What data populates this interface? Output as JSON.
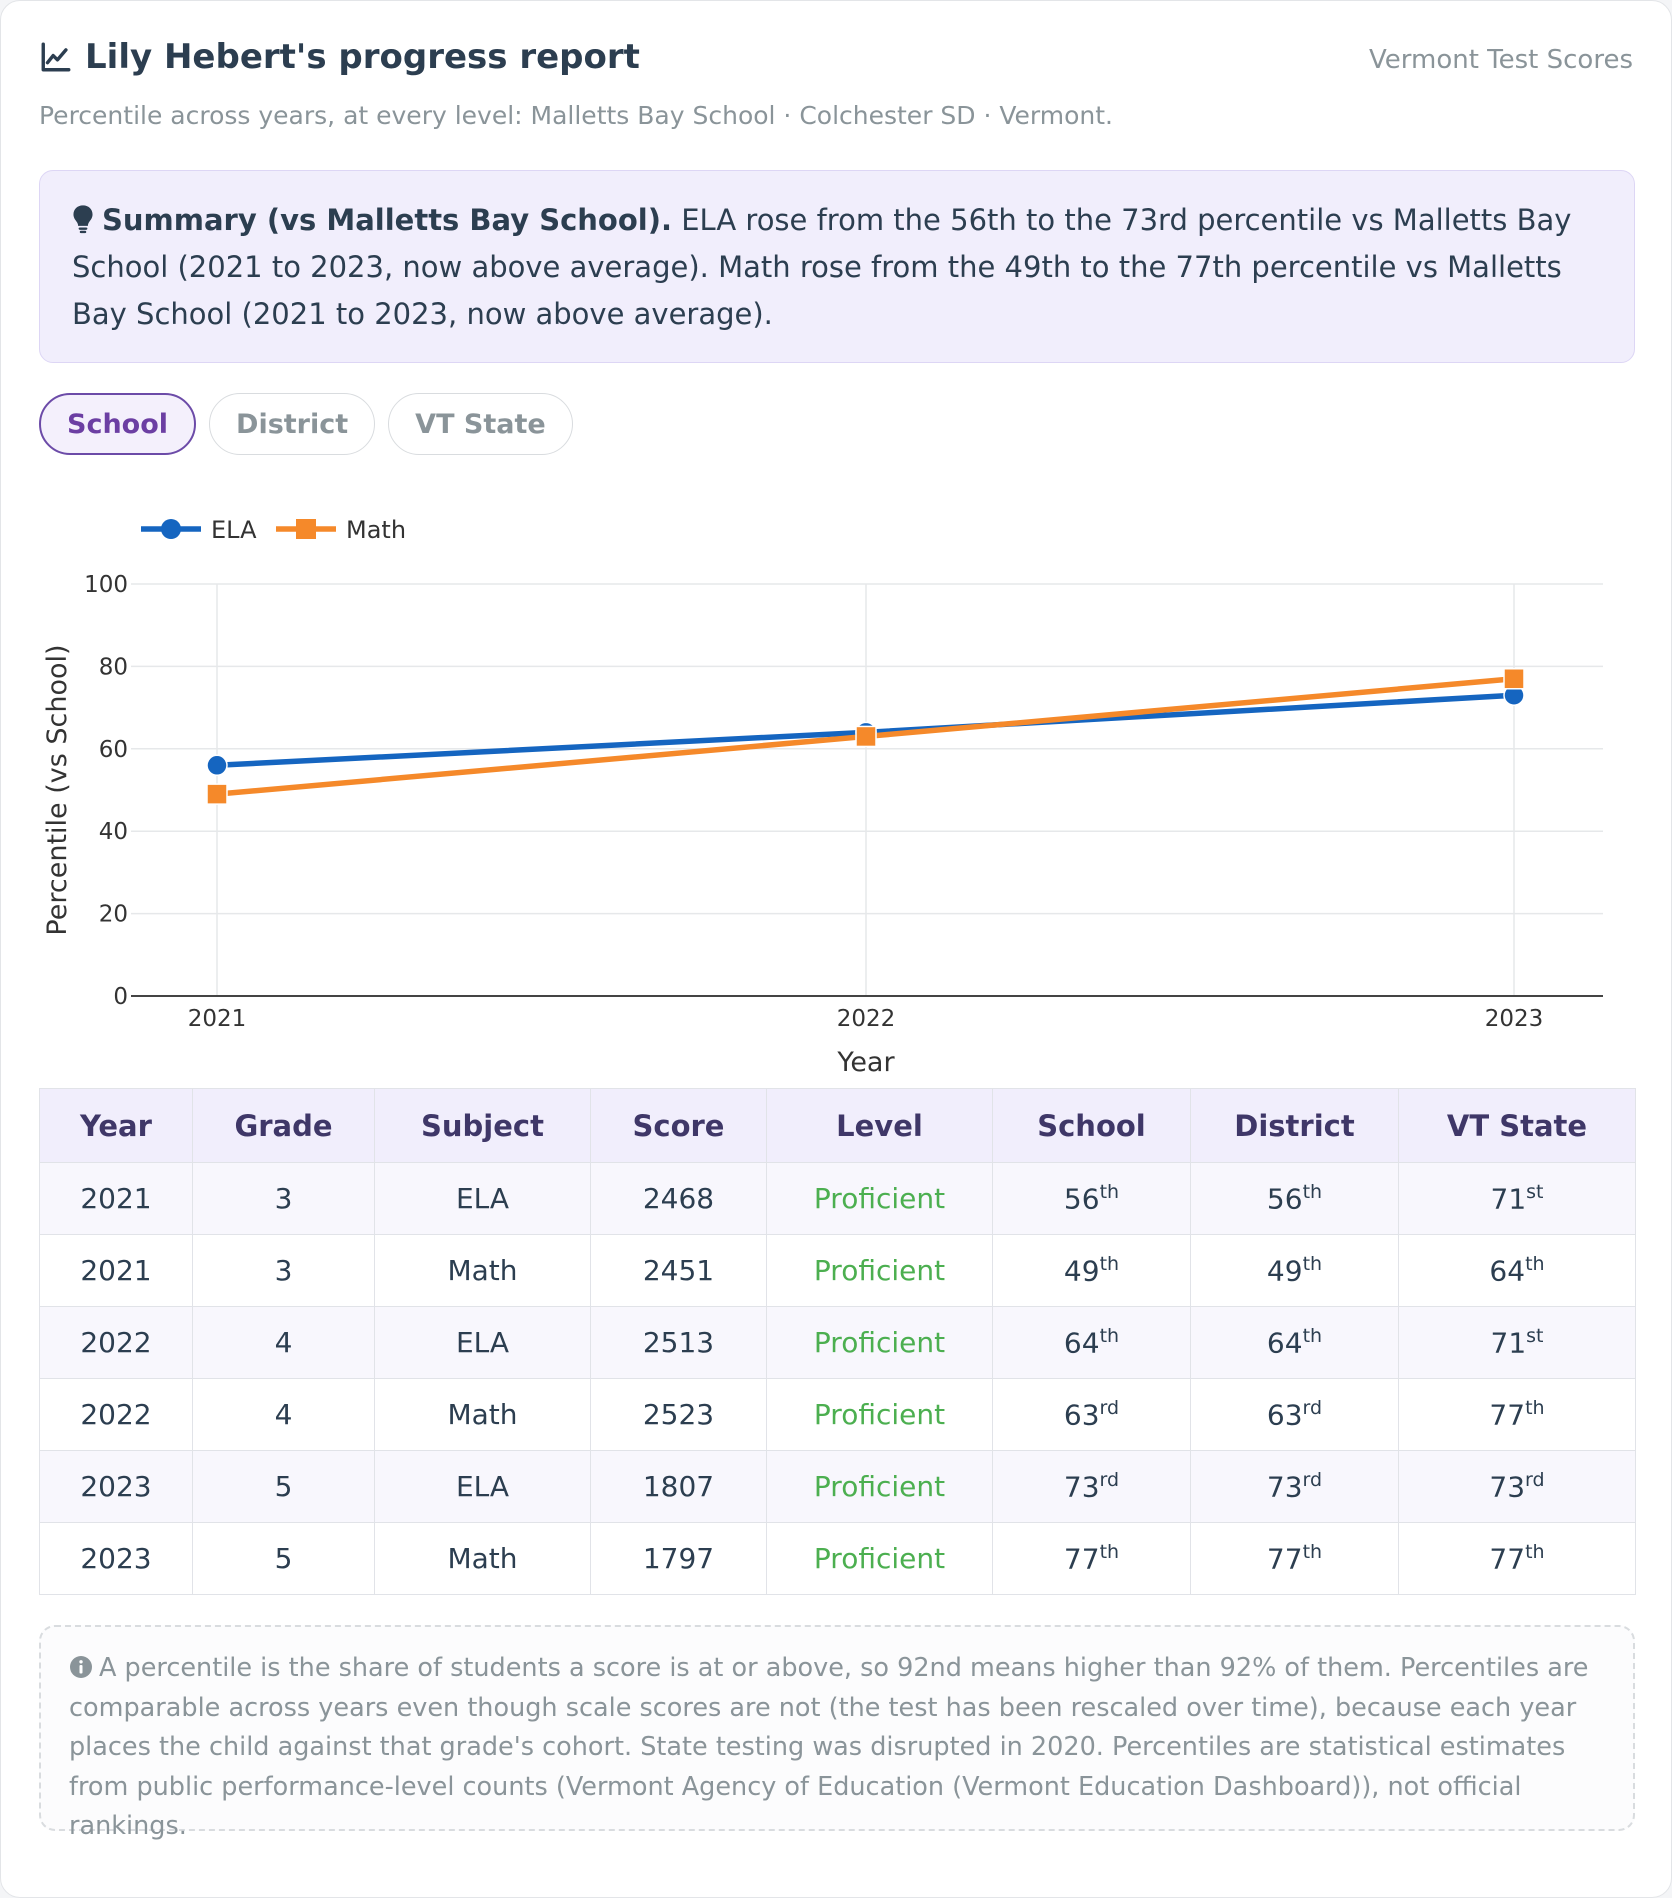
{
  "header": {
    "title": "Lily Hebert's progress report",
    "brand": "Vermont Test Scores",
    "subtitle": "Percentile across years, at every level: Malletts Bay School · Colchester SD · Vermont."
  },
  "summary": {
    "lead": "Summary (vs Malletts Bay School).",
    "text": " ELA rose from the 56th to the 73rd percentile vs Malletts Bay School (2021 to 2023, now above average). Math rose from the 49th to the 77th percentile vs Malletts Bay School (2021 to 2023, now above average)."
  },
  "tabs": [
    {
      "label": "School",
      "active": true
    },
    {
      "label": "District",
      "active": false
    },
    {
      "label": "VT State",
      "active": false
    }
  ],
  "chart_data": {
    "type": "line",
    "x": [
      "2021",
      "2022",
      "2023"
    ],
    "series": [
      {
        "name": "ELA",
        "values": [
          56,
          64,
          73
        ],
        "color": "#1565c0",
        "marker": "circle"
      },
      {
        "name": "Math",
        "values": [
          49,
          63,
          77
        ],
        "color": "#f5892a",
        "marker": "square"
      }
    ],
    "xlabel": "Year",
    "ylabel": "Percentile (vs School)",
    "ylim": [
      0,
      100
    ],
    "yticks": [
      0,
      20,
      40,
      60,
      80,
      100
    ],
    "grid": true,
    "legend": "top-left"
  },
  "table": {
    "columns": [
      "Year",
      "Grade",
      "Subject",
      "Score",
      "Level",
      "School",
      "District",
      "VT State"
    ],
    "rows": [
      {
        "year": "2021",
        "grade": "3",
        "subject": "ELA",
        "score": "2468",
        "level": "Proficient",
        "school": [
          "56",
          "th"
        ],
        "district": [
          "56",
          "th"
        ],
        "state": [
          "71",
          "st"
        ]
      },
      {
        "year": "2021",
        "grade": "3",
        "subject": "Math",
        "score": "2451",
        "level": "Proficient",
        "school": [
          "49",
          "th"
        ],
        "district": [
          "49",
          "th"
        ],
        "state": [
          "64",
          "th"
        ]
      },
      {
        "year": "2022",
        "grade": "4",
        "subject": "ELA",
        "score": "2513",
        "level": "Proficient",
        "school": [
          "64",
          "th"
        ],
        "district": [
          "64",
          "th"
        ],
        "state": [
          "71",
          "st"
        ]
      },
      {
        "year": "2022",
        "grade": "4",
        "subject": "Math",
        "score": "2523",
        "level": "Proficient",
        "school": [
          "63",
          "rd"
        ],
        "district": [
          "63",
          "rd"
        ],
        "state": [
          "77",
          "th"
        ]
      },
      {
        "year": "2023",
        "grade": "5",
        "subject": "ELA",
        "score": "1807",
        "level": "Proficient",
        "school": [
          "73",
          "rd"
        ],
        "district": [
          "73",
          "rd"
        ],
        "state": [
          "73",
          "rd"
        ]
      },
      {
        "year": "2023",
        "grade": "5",
        "subject": "Math",
        "score": "1797",
        "level": "Proficient",
        "school": [
          "77",
          "th"
        ],
        "district": [
          "77",
          "th"
        ],
        "state": [
          "77",
          "th"
        ]
      }
    ]
  },
  "note": {
    "text": "A percentile is the share of students a score is at or above, so 92nd means higher than 92% of them. Percentiles are comparable across years even though scale scores are not (the test has been rescaled over time), because each year places the child against that grade's cohort. State testing was disrupted in 2020. Percentiles are statistical estimates from public performance-level counts (Vermont Agency of Education (Vermont Education Dashboard)), not official rankings."
  },
  "icons": {
    "title": "line-chart-icon",
    "summary": "lightbulb-icon",
    "note": "info-icon"
  },
  "colors": {
    "accent": "#6c3fa3",
    "proficient": "#4caf50",
    "ela": "#1565c0",
    "math": "#f5892a"
  }
}
